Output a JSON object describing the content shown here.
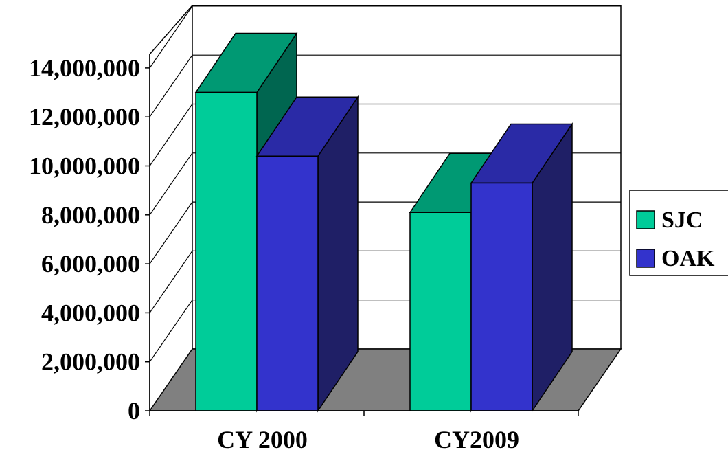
{
  "chart_data": {
    "type": "bar",
    "three_d": true,
    "categories": [
      "CY 2000",
      "CY2009"
    ],
    "series": [
      {
        "name": "SJC",
        "values": [
          13000000,
          8100000
        ],
        "color": "#00CC99",
        "top_color": "#009973",
        "side_color": "#006650"
      },
      {
        "name": "OAK",
        "values": [
          10400000,
          9300000
        ],
        "color": "#3333CC",
        "top_color": "#2A2AA6",
        "side_color": "#1F1F66"
      }
    ],
    "y_ticks": [
      "0",
      "2,000,000",
      "4,000,000",
      "6,000,000",
      "8,000,000",
      "10,000,000",
      "12,000,000",
      "14,000,000"
    ],
    "ylim": [
      0,
      14000000
    ],
    "grid": true,
    "legend_position": "right",
    "floor_color": "#808080"
  }
}
